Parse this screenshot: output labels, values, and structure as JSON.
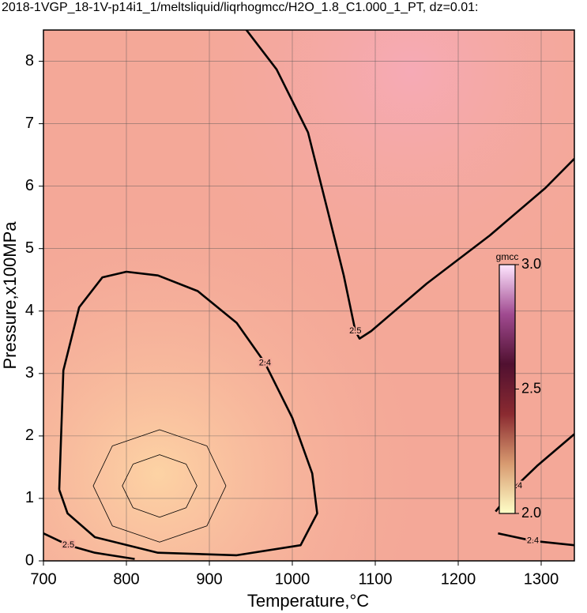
{
  "chart_data": {
    "type": "contour",
    "title": "2018-1VGP_18-1V-p14i1_1/meltsliquid/liqrhogmcc/H2O_1.8_C1.000_1_PT, dz=0.01:",
    "x_label": "Temperature,°C",
    "y_label": "Pressure,x100MPa",
    "xlim": [
      700,
      1340
    ],
    "ylim": [
      0,
      8.5
    ],
    "xticks": [
      700,
      800,
      900,
      1000,
      1100,
      1200,
      1300
    ],
    "yticks": [
      0,
      1,
      2,
      3,
      4,
      5,
      6,
      7,
      8
    ],
    "grid": true,
    "line_color": "#000000",
    "contours": [
      {
        "level": 2.4,
        "bold": true,
        "x": [
          719,
          724,
          743,
          771,
          800,
          838,
          886,
          933,
          967,
          1000,
          1024,
          1030,
          1010,
          933,
          838,
          762,
          729,
          719
        ],
        "y": [
          1.14,
          3.05,
          4.06,
          4.54,
          4.63,
          4.57,
          4.32,
          3.81,
          3.17,
          2.29,
          1.4,
          0.76,
          0.25,
          0.09,
          0.13,
          0.38,
          0.76,
          1.14
        ]
      },
      {
        "level": 2.5,
        "bold": true,
        "x": [
          943,
          981,
          1019,
          1043,
          1062,
          1076,
          1081,
          1095,
          1162,
          1238,
          1305,
          1340
        ],
        "y": [
          8.53,
          7.87,
          6.86,
          5.59,
          4.57,
          3.68,
          3.56,
          3.68,
          4.44,
          5.21,
          5.97,
          6.44
        ]
      },
      {
        "level": 2.4,
        "bold": true,
        "x": [
          1245,
          1270,
          1295,
          1340
        ],
        "y": [
          0.79,
          1.2,
          1.52,
          2.03
        ]
      },
      {
        "level": 2.4,
        "bold": true,
        "x": [
          1248,
          1290,
          1340
        ],
        "y": [
          0.44,
          0.32,
          0.25
        ]
      },
      {
        "level": 2.5,
        "bold": true,
        "x": [
          700,
          730,
          762,
          810
        ],
        "y": [
          0.44,
          0.25,
          0.13,
          0.03
        ]
      },
      {
        "level": 2.38,
        "bold": false,
        "x": [
          920,
          897,
          840,
          783,
          760,
          783,
          840,
          897,
          920
        ],
        "y": [
          1.2,
          1.84,
          2.1,
          1.84,
          1.2,
          0.56,
          0.3,
          0.56,
          1.2
        ]
      },
      {
        "level": 2.36,
        "bold": false,
        "x": [
          885,
          872,
          840,
          808,
          795,
          808,
          840,
          872,
          885
        ],
        "y": [
          1.2,
          1.55,
          1.7,
          1.55,
          1.2,
          0.85,
          0.7,
          0.85,
          1.2
        ]
      }
    ],
    "colorbar": {
      "label": "gmcc",
      "lim": [
        2,
        3
      ],
      "ticks": [
        {
          "value": 2,
          "label": "2.0"
        },
        2.5,
        {
          "value": 3,
          "label": "3.0"
        }
      ],
      "colors": [
        "#ffffc8",
        "#d89a70",
        "#8a2a30",
        "#501030",
        "#a04a90",
        "#ffe6ff"
      ]
    }
  }
}
